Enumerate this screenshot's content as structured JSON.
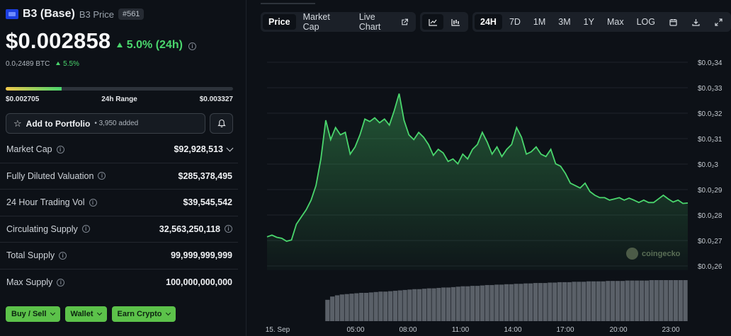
{
  "coin": {
    "name": "B3 (Base)",
    "subtitle": "B3 Price",
    "rank": "#561",
    "price": "$0.002858",
    "change": "5.0% (24h)",
    "btc_price": "0.0₇2489 BTC",
    "btc_change": "5.5%"
  },
  "range": {
    "low": "$0.002705",
    "label": "24h Range",
    "high": "$0.003327",
    "position": 0.246
  },
  "portfolio": {
    "label": "Add to Portfolio",
    "added": "• 3,950 added"
  },
  "stats": [
    {
      "label": "Market Cap",
      "value": "$92,928,513"
    },
    {
      "label": "Fully Diluted Valuation",
      "value": "$285,378,495"
    },
    {
      "label": "24 Hour Trading Vol",
      "value": "$39,545,542"
    },
    {
      "label": "Circulating Supply",
      "value": "32,563,250,118"
    },
    {
      "label": "Total Supply",
      "value": "99,999,999,999"
    },
    {
      "label": "Max Supply",
      "value": "100,000,000,000"
    }
  ],
  "actions": [
    "Buy / Sell",
    "Wallet",
    "Earn Crypto"
  ],
  "toolbar": {
    "tabs": [
      "Price",
      "Market Cap",
      "Live Chart"
    ],
    "active_tab": "Price",
    "ranges": [
      "24H",
      "7D",
      "1M",
      "3M",
      "1Y",
      "Max",
      "LOG"
    ],
    "active_range": "24H"
  },
  "watermark": "coingecko",
  "colors": {
    "accent": "#4ad66d",
    "pill": "#5cc24a",
    "bg": "#0d1117"
  },
  "chart_data": {
    "type": "area",
    "x_ticks": [
      "15. Sep",
      "05:00",
      "08:00",
      "11:00",
      "14:00",
      "17:00",
      "20:00",
      "23:00"
    ],
    "y_ticks": [
      "$0.0₂34",
      "$0.0₂33",
      "$0.0₂32",
      "$0.0₂31",
      "$0.0₂3",
      "$0.0₂29",
      "$0.0₂28",
      "$0.0₂27",
      "$0.0₂26"
    ],
    "ylim": [
      0.00258,
      0.00344
    ],
    "series": [
      {
        "values": [
          0.002718,
          0.002725,
          0.002716,
          0.002712,
          0.0027,
          0.002705,
          0.00277,
          0.0028,
          0.00283,
          0.00287,
          0.00293,
          0.00304,
          0.0032,
          0.00312,
          0.00317,
          0.00314,
          0.00315,
          0.00306,
          0.00309,
          0.00314,
          0.003205,
          0.003195,
          0.00321,
          0.00319,
          0.003205,
          0.00318,
          0.00324,
          0.00331,
          0.0032,
          0.00314,
          0.00312,
          0.00315,
          0.00313,
          0.0031,
          0.003055,
          0.00308,
          0.003065,
          0.00303,
          0.00304,
          0.00302,
          0.00306,
          0.00304,
          0.00308,
          0.0031,
          0.00315,
          0.00311,
          0.00306,
          0.00309,
          0.00305,
          0.00308,
          0.0031,
          0.00317,
          0.00313,
          0.00306,
          0.00307,
          0.00309,
          0.00306,
          0.00305,
          0.00308,
          0.00302,
          0.00301,
          0.00298,
          0.00294,
          0.00293,
          0.00292,
          0.00294,
          0.002905,
          0.00289,
          0.00288,
          0.00288,
          0.00287,
          0.002875,
          0.00288,
          0.00287,
          0.002878,
          0.00287,
          0.00286,
          0.00287,
          0.00286,
          0.00286,
          0.002875,
          0.00289,
          0.002875,
          0.002862,
          0.00287,
          0.002856,
          0.002858
        ],
        "volume": [
          0,
          0,
          0,
          0,
          0,
          0,
          0,
          0,
          0,
          0,
          0,
          0,
          0.52,
          0.6,
          0.63,
          0.65,
          0.66,
          0.67,
          0.68,
          0.69,
          0.69,
          0.7,
          0.71,
          0.72,
          0.72,
          0.73,
          0.74,
          0.75,
          0.76,
          0.77,
          0.78,
          0.78,
          0.79,
          0.8,
          0.8,
          0.81,
          0.82,
          0.82,
          0.83,
          0.84,
          0.85,
          0.85,
          0.86,
          0.86,
          0.87,
          0.88,
          0.88,
          0.89,
          0.89,
          0.9,
          0.9,
          0.91,
          0.91,
          0.92,
          0.92,
          0.93,
          0.93,
          0.93,
          0.94,
          0.94,
          0.95,
          0.95,
          0.95,
          0.96,
          0.96,
          0.96,
          0.97,
          0.97,
          0.97,
          0.97,
          0.98,
          0.98,
          0.98,
          0.98,
          0.99,
          0.99,
          0.99,
          0.99,
          0.99,
          1.0,
          1.0,
          1.0,
          1.0,
          1.0,
          1.0,
          1.0,
          1.0
        ]
      }
    ]
  }
}
